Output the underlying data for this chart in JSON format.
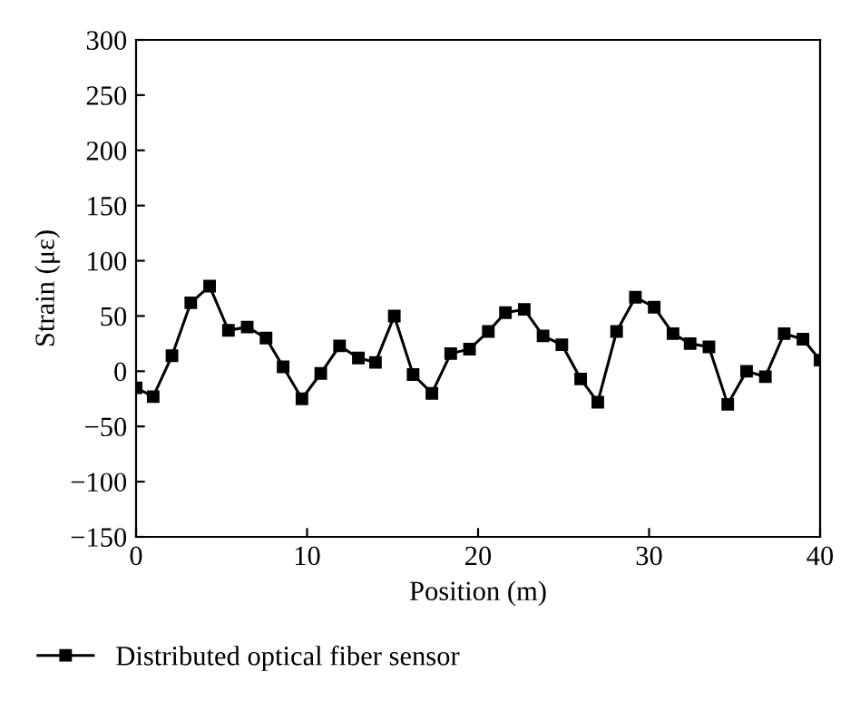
{
  "chart_data": {
    "type": "line",
    "xlabel": "Position (m)",
    "ylabel": "Strain (με)",
    "xlim": [
      0,
      40
    ],
    "xticks": [
      0,
      10,
      20,
      30,
      40
    ],
    "ylim": [
      -150,
      300
    ],
    "yticks": [
      -150,
      -100,
      -50,
      0,
      50,
      100,
      150,
      200,
      250,
      300
    ],
    "grid": false,
    "legend": "bottom",
    "marker": "square",
    "line_style": "solid",
    "series": [
      {
        "name": "Distributed optical fiber sensor",
        "color": "#000000",
        "x": [
          0,
          1,
          2.1,
          3.2,
          4.3,
          5.4,
          6.5,
          7.6,
          8.6,
          9.7,
          10.8,
          11.9,
          13,
          14,
          15.1,
          16.2,
          17.3,
          18.4,
          19.5,
          20.6,
          21.6,
          22.7,
          23.8,
          24.9,
          26,
          27,
          28.1,
          29.2,
          30.3,
          31.4,
          32.4,
          33.5,
          34.6,
          35.7,
          36.8,
          37.9,
          39,
          40
        ],
        "values": [
          -15,
          -23,
          14,
          62,
          77,
          37,
          40,
          30,
          4,
          -25,
          -2,
          23,
          12,
          8,
          50,
          -3,
          -20,
          16,
          20,
          36,
          53,
          56,
          32,
          24,
          -7,
          -28,
          36,
          67,
          58,
          34,
          25,
          22,
          -30,
          0,
          -5,
          34,
          29,
          10
        ]
      }
    ]
  }
}
